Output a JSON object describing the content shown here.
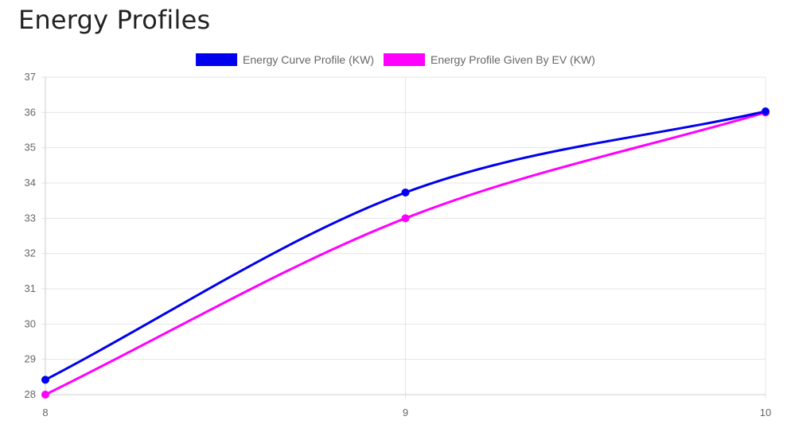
{
  "page": {
    "title": "Energy Profiles"
  },
  "chart_data": {
    "type": "line",
    "title": "",
    "xlabel": "",
    "ylabel": "",
    "x": [
      8,
      9,
      10
    ],
    "xlim": [
      8,
      10
    ],
    "ylim": [
      28,
      37
    ],
    "yticks": [
      28,
      29,
      30,
      31,
      32,
      33,
      34,
      35,
      36,
      37
    ],
    "xticks": [
      8,
      9,
      10
    ],
    "grid": true,
    "legend_position": "top-center",
    "series": [
      {
        "name": "Energy Curve Profile (KW)",
        "color": "#0000ee",
        "values": [
          28.42,
          33.73,
          36.03
        ]
      },
      {
        "name": "Energy Profile Given By EV (KW)",
        "color": "#ff00ff",
        "values": [
          28.0,
          33.0,
          36.0
        ]
      }
    ]
  }
}
